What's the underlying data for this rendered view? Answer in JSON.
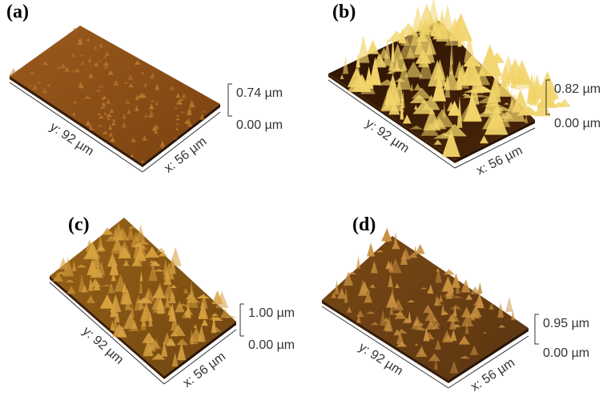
{
  "panels": [
    {
      "label": "(a)",
      "y_axis": "y: 92 µm",
      "x_axis": "x: 56 µm",
      "z_max": "0.74 µm",
      "z_min": "0.00 µm"
    },
    {
      "label": "(b)",
      "y_axis": "y: 92 µm",
      "x_axis": "x: 56 µm",
      "z_max": "0.82 µm",
      "z_min": "0.00 µm"
    },
    {
      "label": "(c)",
      "y_axis": "y: 92 µm",
      "x_axis": "x: 56 µm",
      "z_max": "1.00 µm",
      "z_min": "0.00 µm"
    },
    {
      "label": "(d)",
      "y_axis": "y: 92 µm",
      "x_axis": "x: 56 µm",
      "z_max": "0.95 µm",
      "z_min": "0.00 µm"
    }
  ]
}
